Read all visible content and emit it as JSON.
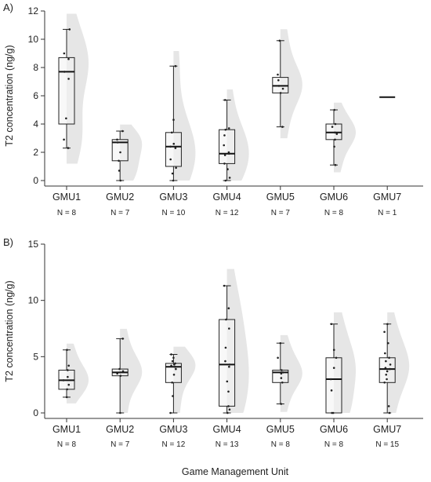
{
  "x_axis_label": "Game Management Unit",
  "chart_data": [
    {
      "panel": "A)",
      "type": "box",
      "ylabel": "T2 concentration (ng/g)",
      "ylim": [
        0,
        12
      ],
      "yticks": [
        0,
        2,
        4,
        6,
        8,
        10,
        12
      ],
      "categories": [
        "GMU1",
        "GMU2",
        "GMU3",
        "GMU4",
        "GMU5",
        "GMU6",
        "GMU7"
      ],
      "n_labels": [
        "N = 8",
        "N = 7",
        "N = 10",
        "N = 12",
        "N = 7",
        "N = 8",
        "N = 1"
      ],
      "boxes": [
        {
          "min": 2.3,
          "q1": 4.0,
          "median": 7.7,
          "q3": 8.7,
          "max": 10.7,
          "points": [
            2.3,
            2.9,
            4.4,
            7.2,
            7.7,
            8.6,
            9.0,
            10.7
          ]
        },
        {
          "min": 0.0,
          "q1": 1.4,
          "median": 2.7,
          "q3": 2.9,
          "max": 3.5,
          "points": [
            0.0,
            0.7,
            1.4,
            2.0,
            2.7,
            2.9,
            3.5
          ]
        },
        {
          "min": 0.0,
          "q1": 1.0,
          "median": 2.4,
          "q3": 3.4,
          "max": 8.1,
          "points": [
            0.0,
            0.5,
            0.9,
            1.5,
            2.3,
            2.4,
            2.6,
            3.4,
            4.3,
            8.1
          ]
        },
        {
          "min": 0.0,
          "q1": 1.2,
          "median": 1.9,
          "q3": 3.6,
          "max": 5.7,
          "points": [
            0.0,
            0.2,
            0.8,
            1.2,
            1.8,
            1.9,
            2.0,
            2.5,
            3.2,
            3.6,
            3.7,
            5.7
          ]
        },
        {
          "min": 3.8,
          "q1": 6.2,
          "median": 6.7,
          "q3": 7.3,
          "max": 9.9,
          "points": [
            3.8,
            6.2,
            6.5,
            6.7,
            7.1,
            7.5,
            9.9
          ]
        },
        {
          "min": 1.1,
          "q1": 2.9,
          "median": 3.4,
          "q3": 4.0,
          "max": 5.0,
          "points": [
            1.1,
            2.4,
            2.9,
            3.3,
            3.4,
            3.8,
            4.0,
            5.0
          ]
        },
        {
          "min": 5.9,
          "q1": 5.9,
          "median": 5.9,
          "q3": 5.9,
          "max": 5.9,
          "points": [
            5.9
          ]
        }
      ],
      "density_color": "#e6e6e6"
    },
    {
      "panel": "B)",
      "type": "box",
      "ylabel": "T2 concentration (ng/g)",
      "ylim": [
        0,
        15
      ],
      "yticks": [
        0,
        5,
        10,
        15
      ],
      "categories": [
        "GMU1",
        "GMU2",
        "GMU3",
        "GMU4",
        "GMU5",
        "GMU6",
        "GMU7"
      ],
      "n_labels": [
        "N = 8",
        "N = 7",
        "N = 12",
        "N = 13",
        "N = 8",
        "N = 8",
        "N = 15"
      ],
      "boxes": [
        {
          "min": 1.4,
          "q1": 2.1,
          "median": 2.9,
          "q3": 3.8,
          "max": 5.6,
          "points": [
            1.4,
            2.1,
            2.5,
            2.9,
            3.2,
            3.8,
            4.2,
            5.6
          ]
        },
        {
          "min": 0.0,
          "q1": 3.3,
          "median": 3.6,
          "q3": 3.9,
          "max": 6.6,
          "points": [
            0.0,
            3.3,
            3.5,
            3.6,
            3.7,
            3.9,
            6.6
          ]
        },
        {
          "min": 0.0,
          "q1": 2.7,
          "median": 4.1,
          "q3": 4.4,
          "max": 5.2,
          "points": [
            0.0,
            1.5,
            2.7,
            3.4,
            3.9,
            4.1,
            4.2,
            4.3,
            4.4,
            4.6,
            4.9,
            5.2
          ]
        },
        {
          "min": 0.0,
          "q1": 0.6,
          "median": 4.3,
          "q3": 8.3,
          "max": 11.3,
          "points": [
            0.0,
            0.3,
            0.6,
            1.9,
            2.8,
            4.1,
            4.3,
            4.6,
            5.8,
            7.5,
            8.3,
            9.3,
            11.3
          ]
        },
        {
          "min": 0.8,
          "q1": 2.7,
          "median": 3.6,
          "q3": 3.8,
          "max": 6.2,
          "points": [
            0.8,
            2.7,
            3.1,
            3.5,
            3.6,
            3.8,
            4.9,
            6.2
          ]
        },
        {
          "min": 0.0,
          "q1": 0.0,
          "median": 3.0,
          "q3": 4.9,
          "max": 7.9,
          "points": [
            0.0,
            0.0,
            2.0,
            3.0,
            4.0,
            4.9,
            5.6,
            7.9
          ]
        },
        {
          "min": 0.0,
          "q1": 2.7,
          "median": 3.9,
          "q3": 4.9,
          "max": 7.9,
          "points": [
            0.0,
            0.6,
            2.7,
            3.0,
            3.4,
            3.7,
            3.9,
            4.0,
            4.3,
            4.6,
            4.9,
            5.3,
            6.2,
            7.2,
            7.9
          ]
        }
      ],
      "density_color": "#e6e6e6"
    }
  ]
}
